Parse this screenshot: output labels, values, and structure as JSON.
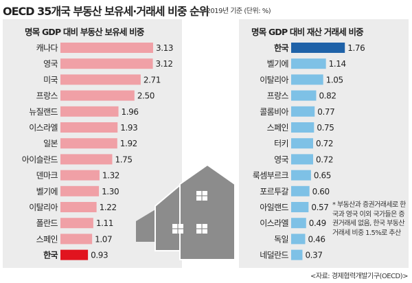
{
  "header": {
    "title": "OECD 35개국 부동산 보유세·거래세 비중 순위",
    "note": "*2019년 기준 (단위: %)"
  },
  "source": "<자료: 경제협력개발기구(OECD)>",
  "footnote": "* 부동산과 증권거래세로 한국과 영국 이외 국가들은 증권거래세 없음, 한국 부동산 거래세 비중 1.5%로 추산",
  "colors": {
    "left_bar": "#f0a0a6",
    "left_highlight": "#e1141f",
    "right_bar": "#7ec1e6",
    "right_highlight": "#1f62a8",
    "panel_bg": "#ececec",
    "house": "#8c8c8c",
    "house_window": "#ffffff"
  },
  "chart_data": [
    {
      "type": "bar",
      "orientation": "horizontal",
      "title": "명목 GDP 대비 부동산 보유세 비중",
      "categories": [
        "캐나다",
        "영국",
        "미국",
        "프랑스",
        "뉴질랜드",
        "이스라엘",
        "일본",
        "아이슬란드",
        "덴마크",
        "벨기에",
        "이탈리아",
        "폴란드",
        "스페인",
        "한국"
      ],
      "values": [
        3.13,
        3.12,
        2.71,
        2.5,
        1.96,
        1.93,
        1.92,
        1.75,
        1.32,
        1.3,
        1.22,
        1.11,
        1.07,
        0.93
      ],
      "value_labels": [
        "3.13",
        "3.12",
        "2.71",
        "2.50",
        "1.96",
        "1.93",
        "1.92",
        "1.75",
        "1.32",
        "1.30",
        "1.22",
        "1.11",
        "1.07",
        "0.93"
      ],
      "highlight": "한국",
      "xlim": [
        0,
        3.2
      ],
      "grid": false
    },
    {
      "type": "bar",
      "orientation": "horizontal",
      "title": "명목 GDP 대비 재산 거래세 비중",
      "categories": [
        "한국",
        "벨기에",
        "이탈리아",
        "프랑스",
        "콜롬비아",
        "스페인",
        "터키",
        "영국",
        "룩셈부르크",
        "포르투갈",
        "아일랜드",
        "이스라엘",
        "독일",
        "네덜란드"
      ],
      "values": [
        1.76,
        1.14,
        1.05,
        0.82,
        0.77,
        0.75,
        0.72,
        0.72,
        0.65,
        0.6,
        0.57,
        0.49,
        0.46,
        0.37
      ],
      "value_labels": [
        "1.76",
        "1.14",
        "1.05",
        "0.82",
        "0.77",
        "0.75",
        "0.72",
        "0.72",
        "0.65",
        "0.60",
        "0.57",
        "0.49",
        "0.46",
        "0.37"
      ],
      "highlight": "한국",
      "xlim": [
        0,
        1.8
      ],
      "grid": false
    }
  ]
}
